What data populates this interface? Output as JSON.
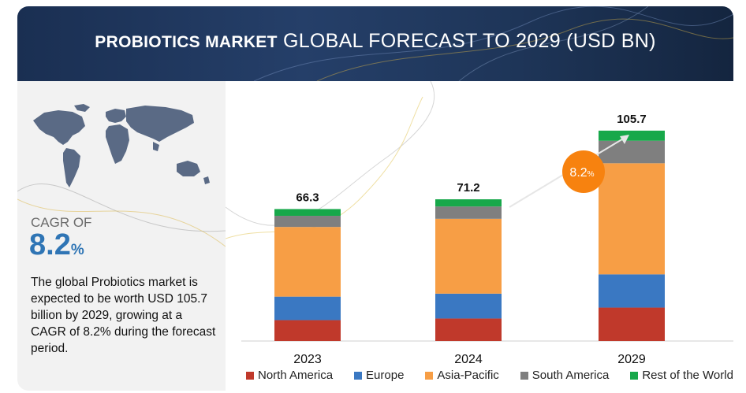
{
  "banner": {
    "title_lead": "PROBIOTICS MARKET",
    "title_rest": "GLOBAL FORECAST TO 2029 (USD BN)"
  },
  "cagr": {
    "label": "CAGR OF",
    "value": "8.2",
    "unit": "%",
    "description": "The global Probiotics market is expected to be worth USD 105.7 billion by 2029, growing at a CAGR of 8.2% during the forecast period."
  },
  "growth_badge": {
    "value": "8.2",
    "unit": "%",
    "color": "#f7820f"
  },
  "chart_data": {
    "type": "bar",
    "stacked": true,
    "title": "PROBIOTICS MARKET GLOBAL FORECAST TO 2029 (USD BN)",
    "categories": [
      "2023",
      "2024",
      "2029"
    ],
    "totals": [
      66.3,
      71.2,
      105.7
    ],
    "series": [
      {
        "name": "North America",
        "color": "#c0392b",
        "values": [
          10.5,
          11.3,
          16.8
        ]
      },
      {
        "name": "Europe",
        "color": "#3a78c2",
        "values": [
          11.8,
          12.5,
          16.7
        ]
      },
      {
        "name": "Asia-Pacific",
        "color": "#f79e45",
        "values": [
          35.0,
          37.6,
          55.8
        ]
      },
      {
        "name": "South America",
        "color": "#7f7f7f",
        "values": [
          5.6,
          6.2,
          11.3
        ]
      },
      {
        "name": "Rest of the World",
        "color": "#17a84a",
        "values": [
          3.4,
          3.6,
          5.1
        ]
      }
    ],
    "ylim": [
      0,
      110
    ],
    "grid": false,
    "legend_position": "bottom"
  }
}
